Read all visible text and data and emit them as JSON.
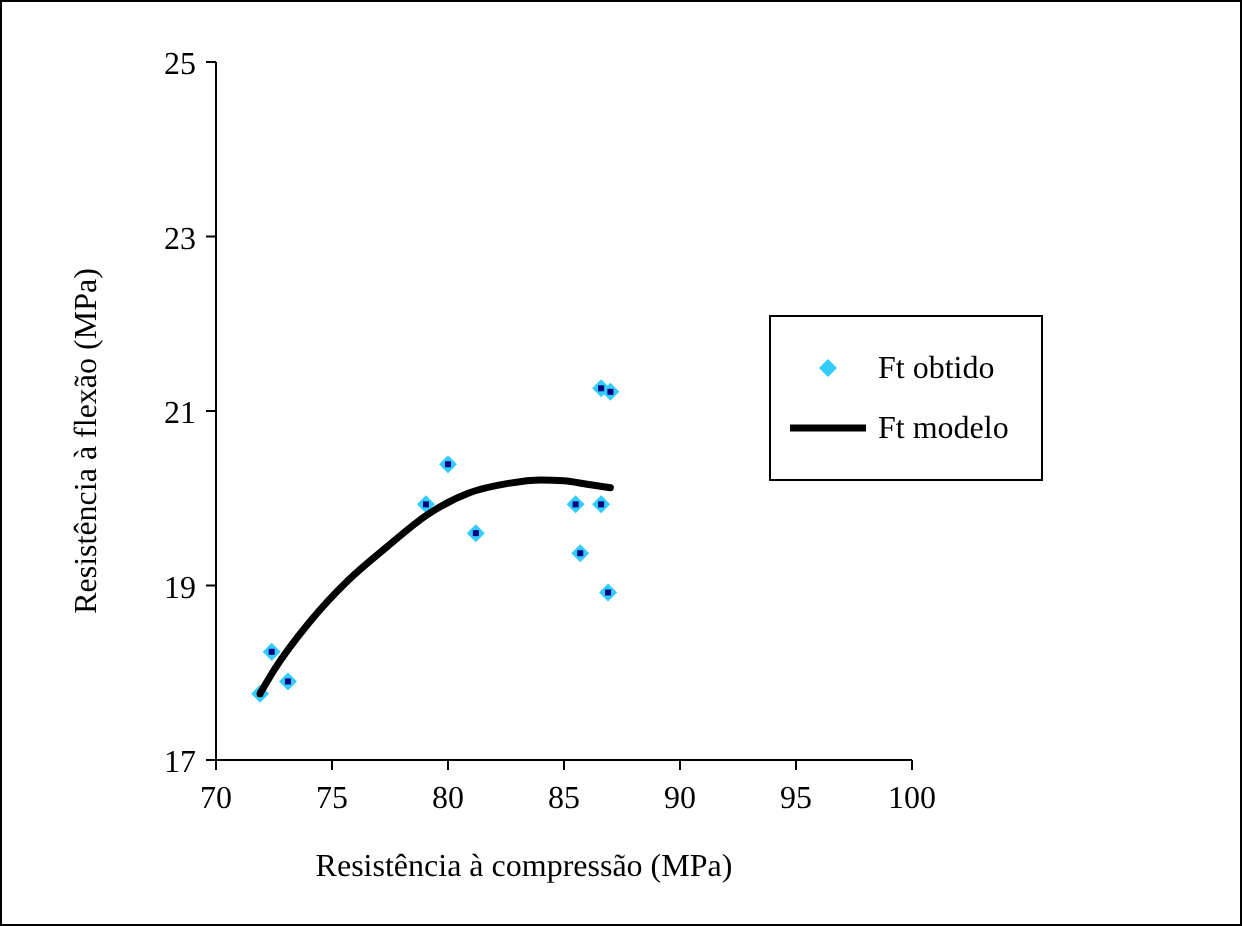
{
  "chart_data": {
    "type": "scatter",
    "xlabel": "Resistência à compressão (MPa)",
    "ylabel": "Resistência à flexão (MPa)",
    "xlim": [
      70,
      100
    ],
    "xticks": [
      70,
      75,
      80,
      85,
      90,
      95,
      100
    ],
    "ylim": [
      17,
      25
    ],
    "yticks": [
      17,
      19,
      21,
      23,
      25
    ],
    "grid": false,
    "legend": "right",
    "series": [
      {
        "name": "Ft obtido",
        "marker": "diamond",
        "color": "#33ccff",
        "x": [
          71.9,
          72.4,
          73.1,
          79.05,
          80.0,
          81.2,
          85.5,
          85.7,
          86.6,
          86.6,
          87.0,
          86.9
        ],
        "values": [
          17.76,
          18.24,
          17.9,
          19.93,
          20.39,
          19.6,
          19.93,
          19.37,
          19.93,
          21.26,
          21.22,
          18.92
        ]
      },
      {
        "name": "Ft modelo",
        "type": "line",
        "line_style": "solid",
        "color": "#000000",
        "x": [
          71.9,
          72.5,
          74.0,
          75.7,
          77.4,
          79.1,
          80.9,
          82.6,
          84.0,
          85.0,
          86.0,
          87.0
        ],
        "values": [
          17.76,
          18.03,
          18.57,
          19.06,
          19.45,
          19.81,
          20.06,
          20.17,
          20.21,
          20.2,
          20.16,
          20.12
        ]
      }
    ]
  }
}
